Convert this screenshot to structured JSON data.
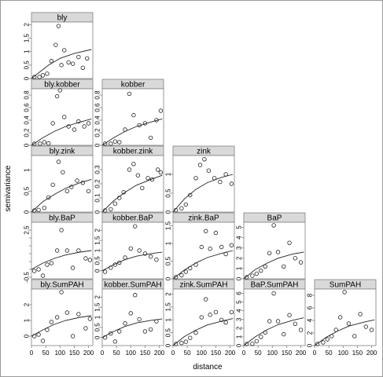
{
  "chart_data": {
    "type": "scatter",
    "layout": "lower-triangular panel grid (5 rows x 5 cols)",
    "xlabel": "distance",
    "ylabel": "semivariance",
    "x_ticks": [
      0,
      50,
      100,
      150,
      200
    ],
    "xlim": [
      0,
      215
    ],
    "fit": "fitted variogram curve per panel",
    "panels": [
      {
        "row": 0,
        "col": 0,
        "title": "bly",
        "ylim": [
          0,
          2.1
        ],
        "yticks": [
          0,
          0.5,
          1,
          1.5,
          2
        ],
        "ytick_labels": [
          "0",
          "0.5",
          "1",
          "1.5",
          "2"
        ],
        "x": [
          10,
          28,
          40,
          55,
          70,
          85,
          95,
          105,
          115,
          130,
          145,
          165,
          180,
          195
        ],
        "y": [
          0.02,
          0.05,
          0.12,
          0.18,
          0.65,
          1.25,
          1.95,
          0.5,
          1.05,
          0.6,
          0.55,
          0.8,
          0.4,
          0.75
        ],
        "curve": [
          [
            0,
            0
          ],
          [
            30,
            0.25
          ],
          [
            60,
            0.5
          ],
          [
            100,
            0.75
          ],
          [
            150,
            0.93
          ],
          [
            210,
            1.08
          ]
        ]
      },
      {
        "row": 1,
        "col": 0,
        "title": "bly.kobber",
        "ylim": [
          0,
          0.9
        ],
        "yticks": [
          0,
          0.2,
          0.4,
          0.6,
          0.8
        ],
        "ytick_labels": [
          "0",
          "0.2",
          "0.4",
          "0.6",
          "0.8"
        ],
        "x": [
          10,
          30,
          45,
          60,
          75,
          90,
          100,
          115,
          130,
          150,
          165,
          185,
          200
        ],
        "y": [
          0.02,
          0.0,
          0.05,
          0.03,
          0.35,
          0.78,
          0.88,
          0.45,
          0.3,
          0.25,
          0.38,
          0.3,
          0.35
        ],
        "curve": [
          [
            0,
            0
          ],
          [
            40,
            0.12
          ],
          [
            80,
            0.22
          ],
          [
            120,
            0.3
          ],
          [
            170,
            0.37
          ],
          [
            210,
            0.42
          ]
        ]
      },
      {
        "row": 1,
        "col": 1,
        "title": "kobber",
        "ylim": [
          0,
          0.9
        ],
        "yticks": [
          0,
          0.2,
          0.4,
          0.6,
          0.8
        ],
        "ytick_labels": [
          "0",
          "0.2",
          "0.4",
          "0.6",
          "0.8"
        ],
        "x": [
          10,
          30,
          45,
          60,
          80,
          95,
          110,
          130,
          150,
          170,
          190,
          205
        ],
        "y": [
          0.02,
          0.02,
          0.06,
          0.05,
          0.25,
          0.82,
          0.48,
          0.32,
          0.35,
          0.12,
          0.4,
          0.55
        ],
        "curve": [
          [
            0,
            0
          ],
          [
            40,
            0.12
          ],
          [
            80,
            0.22
          ],
          [
            120,
            0.3
          ],
          [
            170,
            0.37
          ],
          [
            210,
            0.42
          ]
        ]
      },
      {
        "row": 2,
        "col": 0,
        "title": "bly.zink",
        "ylim": [
          0,
          1.35
        ],
        "yticks": [
          0,
          0.5,
          1
        ],
        "ytick_labels": [
          "0",
          "0.5",
          "1"
        ],
        "x": [
          10,
          25,
          45,
          60,
          75,
          95,
          110,
          125,
          140,
          160,
          180,
          200
        ],
        "y": [
          0.02,
          0.05,
          0.1,
          0.35,
          0.65,
          1.2,
          0.95,
          0.5,
          0.6,
          0.75,
          0.7,
          0.5
        ],
        "curve": [
          [
            0,
            0
          ],
          [
            40,
            0.25
          ],
          [
            80,
            0.42
          ],
          [
            120,
            0.57
          ],
          [
            170,
            0.7
          ],
          [
            210,
            0.78
          ]
        ]
      },
      {
        "row": 2,
        "col": 1,
        "title": "kobber.zink",
        "ylim": [
          0,
          0.4
        ],
        "yticks": [
          0,
          0.1,
          0.2,
          0.3
        ],
        "ytick_labels": [
          "0",
          "0.1",
          "0.2",
          "0.3"
        ],
        "x": [
          10,
          30,
          45,
          60,
          75,
          95,
          110,
          125,
          140,
          160,
          175,
          195,
          205
        ],
        "y": [
          0.01,
          0.02,
          0.06,
          0.1,
          0.14,
          0.3,
          0.34,
          0.26,
          0.17,
          0.24,
          0.23,
          0.3,
          0.28
        ],
        "curve": [
          [
            0,
            0
          ],
          [
            40,
            0.08
          ],
          [
            80,
            0.14
          ],
          [
            120,
            0.19
          ],
          [
            170,
            0.23
          ],
          [
            210,
            0.26
          ]
        ]
      },
      {
        "row": 2,
        "col": 2,
        "title": "zink",
        "ylim": [
          0,
          1.5
        ],
        "yticks": [
          0,
          0.5,
          1
        ],
        "ytick_labels": [
          "0",
          "0.5",
          "1"
        ],
        "x": [
          10,
          30,
          45,
          60,
          80,
          95,
          110,
          125,
          145,
          165,
          185,
          205
        ],
        "y": [
          0.05,
          0.1,
          0.2,
          0.45,
          0.9,
          1.25,
          1.4,
          1.1,
          0.9,
          0.8,
          1.0,
          0.75
        ],
        "curve": [
          [
            0,
            0
          ],
          [
            40,
            0.35
          ],
          [
            80,
            0.6
          ],
          [
            120,
            0.78
          ],
          [
            170,
            0.92
          ],
          [
            210,
            1.0
          ]
        ]
      },
      {
        "row": 3,
        "col": 0,
        "title": "bly.BaP",
        "ylim": [
          -0.6,
          3.0
        ],
        "yticks": [
          -0.5,
          0,
          0.5,
          1,
          1.5,
          2,
          2.5
        ],
        "ytick_labels": [
          "-0.5",
          "",
          "",
          "",
          "",
          "",
          "2.5"
        ],
        "x": [
          10,
          25,
          40,
          55,
          70,
          90,
          105,
          125,
          145,
          165,
          190,
          205
        ],
        "y": [
          -0.1,
          0.0,
          -0.4,
          0.3,
          0.4,
          1.2,
          2.5,
          1.2,
          0.1,
          1.2,
          0.7,
          0.6
        ],
        "curve": [
          [
            0,
            0
          ],
          [
            40,
            0.4
          ],
          [
            80,
            0.7
          ],
          [
            120,
            0.92
          ],
          [
            170,
            1.1
          ],
          [
            210,
            1.2
          ]
        ]
      },
      {
        "row": 3,
        "col": 1,
        "title": "kobber.BaP",
        "ylim": [
          -0.4,
          2.4
        ],
        "yticks": [
          0,
          0.5,
          1,
          1.5,
          2
        ],
        "ytick_labels": [
          "0",
          "0.5",
          "1",
          "1.5",
          "2"
        ],
        "x": [
          10,
          30,
          45,
          60,
          80,
          100,
          115,
          130,
          150,
          170,
          190
        ],
        "y": [
          -0.05,
          0.15,
          0.3,
          0.4,
          0.65,
          1.1,
          2.2,
          1.0,
          0.85,
          0.7,
          0.55
        ],
        "curve": [
          [
            0,
            0
          ],
          [
            40,
            0.3
          ],
          [
            80,
            0.55
          ],
          [
            120,
            0.72
          ],
          [
            170,
            0.85
          ],
          [
            210,
            0.92
          ]
        ]
      },
      {
        "row": 3,
        "col": 2,
        "title": "zink.BaP",
        "ylim": [
          0,
          1.6
        ],
        "yticks": [
          0,
          0.5,
          1,
          1.5
        ],
        "ytick_labels": [
          "0",
          "0.5",
          "1",
          "1.5"
        ],
        "x": [
          10,
          30,
          45,
          60,
          80,
          100,
          115,
          130,
          150,
          170,
          185,
          205
        ],
        "y": [
          0.02,
          0.1,
          0.2,
          0.3,
          0.4,
          0.9,
          1.35,
          0.85,
          1.3,
          0.9,
          0.7,
          0.95
        ],
        "curve": [
          [
            0,
            0
          ],
          [
            40,
            0.25
          ],
          [
            80,
            0.45
          ],
          [
            120,
            0.6
          ],
          [
            170,
            0.72
          ],
          [
            210,
            0.8
          ]
        ]
      },
      {
        "row": 3,
        "col": 3,
        "title": "BaP",
        "ylim": [
          0,
          5.5
        ],
        "yticks": [
          0,
          1,
          2,
          3,
          4,
          5
        ],
        "ytick_labels": [
          "0",
          "1",
          "2",
          "3",
          "4",
          "5"
        ],
        "x": [
          10,
          30,
          45,
          60,
          75,
          90,
          105,
          120,
          140,
          160,
          180,
          200
        ],
        "y": [
          0.1,
          0.3,
          0.5,
          0.8,
          1.2,
          2.5,
          5.2,
          2.6,
          1.2,
          3.5,
          2.0,
          1.6
        ],
        "curve": [
          [
            0,
            0
          ],
          [
            40,
            0.9
          ],
          [
            80,
            1.5
          ],
          [
            120,
            2.0
          ],
          [
            170,
            2.4
          ],
          [
            210,
            2.6
          ]
        ]
      },
      {
        "row": 4,
        "col": 0,
        "title": "bly.SumPAH",
        "ylim": [
          -0.6,
          3.0
        ],
        "yticks": [
          0,
          1,
          2
        ],
        "ytick_labels": [
          "0",
          "1",
          "2"
        ],
        "x": [
          10,
          25,
          40,
          55,
          70,
          90,
          105,
          125,
          145,
          165,
          190,
          205
        ],
        "y": [
          0.0,
          0.1,
          -0.3,
          0.4,
          0.9,
          1.2,
          2.8,
          1.5,
          0.0,
          1.4,
          0.5,
          1.1
        ],
        "curve": [
          [
            0,
            0
          ],
          [
            40,
            0.4
          ],
          [
            80,
            0.75
          ],
          [
            120,
            1.0
          ],
          [
            170,
            1.2
          ],
          [
            210,
            1.3
          ]
        ]
      },
      {
        "row": 4,
        "col": 1,
        "title": "kobber.SumPAH",
        "ylim": [
          -0.4,
          2.4
        ],
        "yticks": [
          0,
          0.5,
          1,
          1.5,
          2
        ],
        "ytick_labels": [
          "0",
          "0.5",
          "1",
          "1.5",
          "2"
        ],
        "x": [
          10,
          30,
          45,
          60,
          80,
          100,
          115,
          130,
          150,
          170,
          190
        ],
        "y": [
          0.0,
          0.2,
          -0.2,
          0.3,
          0.7,
          1.2,
          2.1,
          0.9,
          0.3,
          0.4,
          0.8
        ],
        "curve": [
          [
            0,
            0
          ],
          [
            40,
            0.3
          ],
          [
            80,
            0.55
          ],
          [
            120,
            0.72
          ],
          [
            170,
            0.85
          ],
          [
            210,
            0.92
          ]
        ]
      },
      {
        "row": 4,
        "col": 2,
        "title": "zink.SumPAH",
        "ylim": [
          0,
          2.2
        ],
        "yticks": [
          0,
          0.5,
          1,
          1.5,
          2
        ],
        "ytick_labels": [
          "0",
          "0.5",
          "1",
          "1.5",
          "2"
        ],
        "x": [
          10,
          30,
          45,
          60,
          80,
          100,
          115,
          130,
          150,
          170,
          185,
          205
        ],
        "y": [
          0.05,
          0.1,
          0.15,
          0.3,
          0.5,
          1.1,
          1.8,
          1.2,
          1.3,
          1.0,
          0.9,
          1.3
        ],
        "curve": [
          [
            0,
            0
          ],
          [
            40,
            0.35
          ],
          [
            80,
            0.6
          ],
          [
            120,
            0.8
          ],
          [
            170,
            0.95
          ],
          [
            210,
            1.05
          ]
        ]
      },
      {
        "row": 4,
        "col": 3,
        "title": "BaP.SumPAH",
        "ylim": [
          0,
          6.5
        ],
        "yticks": [
          0,
          1,
          2,
          3,
          4,
          5,
          6
        ],
        "ytick_labels": [
          "0",
          "1",
          "2",
          "3",
          "4",
          "5",
          "6"
        ],
        "x": [
          10,
          30,
          45,
          60,
          75,
          90,
          105,
          120,
          140,
          160,
          180,
          200
        ],
        "y": [
          0.1,
          0.2,
          0.5,
          1.0,
          1.5,
          2.8,
          6.0,
          2.8,
          1.3,
          3.5,
          2.5,
          1.8
        ],
        "curve": [
          [
            0,
            0
          ],
          [
            40,
            1.0
          ],
          [
            80,
            1.8
          ],
          [
            120,
            2.4
          ],
          [
            170,
            2.9
          ],
          [
            210,
            3.2
          ]
        ]
      },
      {
        "row": 4,
        "col": 4,
        "title": "SumPAH",
        "ylim": [
          0,
          9
        ],
        "yticks": [
          0,
          2,
          4,
          6,
          8
        ],
        "ytick_labels": [
          "0",
          "2",
          "4",
          "6",
          "8"
        ],
        "x": [
          10,
          30,
          45,
          60,
          75,
          90,
          105,
          120,
          140,
          160,
          180,
          200
        ],
        "y": [
          0.2,
          0.5,
          1.0,
          1.5,
          2.5,
          4.5,
          8.5,
          3.5,
          1.5,
          5.0,
          3.0,
          2.5
        ],
        "curve": [
          [
            0,
            0
          ],
          [
            40,
            1.3
          ],
          [
            80,
            2.3
          ],
          [
            120,
            3.1
          ],
          [
            170,
            3.7
          ],
          [
            210,
            4.1
          ]
        ]
      }
    ]
  }
}
